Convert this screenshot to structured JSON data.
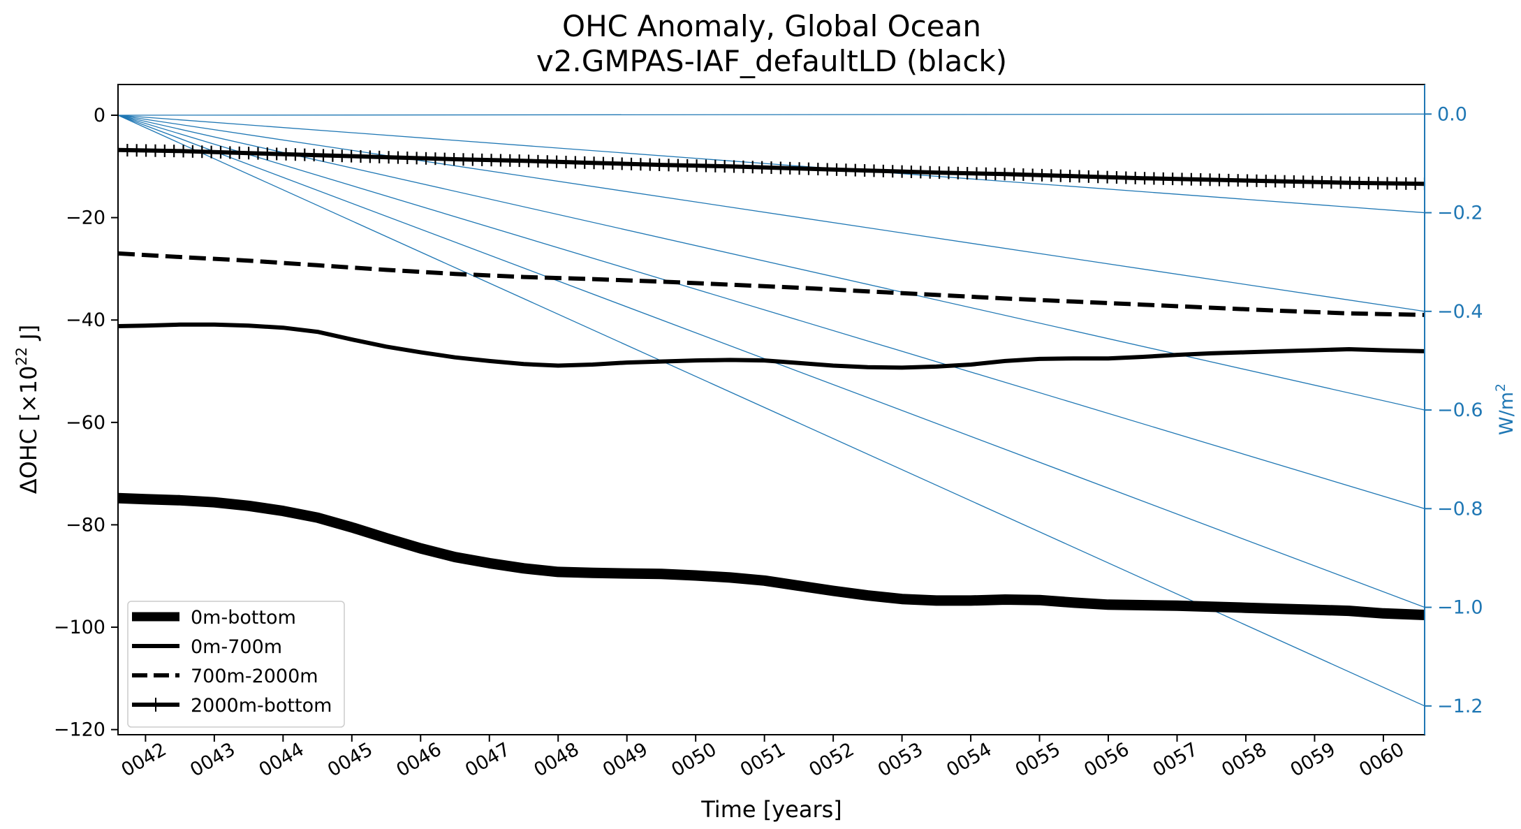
{
  "chart_data": {
    "type": "line",
    "title": [
      "OHC Anomaly, Global Ocean",
      "v2.GMPAS-IAF_defaultLD (black)"
    ],
    "xlabel": "Time [years]",
    "ylabel": "ΔOHC [×10²² J]",
    "ylabel_base": "ΔOHC [×10",
    "ylabel_exp": "22",
    "ylabel_tail": " J]",
    "y2label_base": "W/m",
    "y2label_exp": "2",
    "xlim": [
      41.6,
      60.6
    ],
    "ylim": [
      -121,
      6
    ],
    "y2lim": [
      -1.2583,
      0.0599
    ],
    "x_ticks": [
      42,
      43,
      44,
      45,
      46,
      47,
      48,
      49,
      50,
      51,
      52,
      53,
      54,
      55,
      56,
      57,
      58,
      59,
      60
    ],
    "x_tick_labels": [
      "0042",
      "0043",
      "0044",
      "0045",
      "0046",
      "0047",
      "0048",
      "0049",
      "0050",
      "0051",
      "0052",
      "0053",
      "0054",
      "0055",
      "0056",
      "0057",
      "0058",
      "0059",
      "0060"
    ],
    "y_ticks": [
      0,
      -20,
      -40,
      -60,
      -80,
      -100,
      -120
    ],
    "y_tick_labels": [
      "0",
      "−20",
      "−40",
      "−60",
      "−80",
      "−100",
      "−120"
    ],
    "y2_ticks": [
      0.0,
      -0.2,
      -0.4,
      -0.6,
      -0.8,
      -1.0,
      -1.2
    ],
    "y2_tick_labels": [
      "0.0",
      "−0.2",
      "−0.4",
      "−0.6",
      "−0.8",
      "−1.0",
      "−1.2"
    ],
    "reference_lines": {
      "color": "#1f77b4",
      "origin": [
        41.6,
        0
      ],
      "end_x": 60.6,
      "end_values_wm2": [
        0.0,
        -0.2,
        -0.4,
        -0.6,
        -0.8,
        -1.0,
        -1.2
      ]
    },
    "series": [
      {
        "name": "0m-bottom",
        "style": "solid-thick",
        "x": [
          41.6,
          42.0,
          42.5,
          43.0,
          43.5,
          44.0,
          44.5,
          45.0,
          45.5,
          46.0,
          46.5,
          47.0,
          47.5,
          48.0,
          48.5,
          49.0,
          49.5,
          50.0,
          50.5,
          51.0,
          51.5,
          52.0,
          52.5,
          53.0,
          53.5,
          54.0,
          54.5,
          55.0,
          55.5,
          56.0,
          56.5,
          57.0,
          57.5,
          58.0,
          58.5,
          59.0,
          59.5,
          60.0,
          60.6
        ],
        "values": [
          -74.8,
          -75.0,
          -75.2,
          -75.6,
          -76.3,
          -77.3,
          -78.6,
          -80.5,
          -82.6,
          -84.6,
          -86.3,
          -87.5,
          -88.5,
          -89.2,
          -89.4,
          -89.5,
          -89.6,
          -89.9,
          -90.3,
          -90.9,
          -91.9,
          -92.9,
          -93.8,
          -94.5,
          -94.8,
          -94.8,
          -94.6,
          -94.7,
          -95.2,
          -95.6,
          -95.7,
          -95.8,
          -96.0,
          -96.2,
          -96.4,
          -96.6,
          -96.8,
          -97.3,
          -97.6
        ]
      },
      {
        "name": "0m-700m",
        "style": "solid",
        "x": [
          41.6,
          42.0,
          42.5,
          43.0,
          43.5,
          44.0,
          44.5,
          45.0,
          45.5,
          46.0,
          46.5,
          47.0,
          47.5,
          48.0,
          48.5,
          49.0,
          49.5,
          50.0,
          50.5,
          51.0,
          51.5,
          52.0,
          52.5,
          53.0,
          53.5,
          54.0,
          54.5,
          55.0,
          55.5,
          56.0,
          56.5,
          57.0,
          57.5,
          58.0,
          58.5,
          59.0,
          59.5,
          60.0,
          60.6
        ],
        "values": [
          -41.2,
          -41.1,
          -40.9,
          -40.9,
          -41.1,
          -41.5,
          -42.3,
          -43.8,
          -45.2,
          -46.3,
          -47.3,
          -48.0,
          -48.6,
          -48.9,
          -48.7,
          -48.3,
          -48.1,
          -47.9,
          -47.8,
          -47.9,
          -48.4,
          -48.9,
          -49.2,
          -49.3,
          -49.1,
          -48.7,
          -48.0,
          -47.6,
          -47.5,
          -47.5,
          -47.2,
          -46.8,
          -46.5,
          -46.3,
          -46.1,
          -45.9,
          -45.7,
          -45.9,
          -46.1
        ]
      },
      {
        "name": "700m-2000m",
        "style": "dashed",
        "x": [
          41.6,
          42.5,
          43.5,
          44.5,
          45.5,
          46.5,
          47.5,
          48.5,
          49.5,
          50.5,
          51.5,
          52.5,
          53.5,
          54.5,
          55.5,
          56.5,
          57.5,
          58.5,
          59.5,
          60.6
        ],
        "values": [
          -27.0,
          -27.7,
          -28.4,
          -29.3,
          -30.2,
          -31.0,
          -31.6,
          -32.0,
          -32.5,
          -33.1,
          -33.7,
          -34.4,
          -35.1,
          -35.8,
          -36.4,
          -37.0,
          -37.6,
          -38.2,
          -38.7,
          -39.0
        ]
      },
      {
        "name": "2000m-bottom",
        "style": "solid-plus",
        "x": [
          41.6,
          42.5,
          43.5,
          44.5,
          45.5,
          46.5,
          47.5,
          48.5,
          49.5,
          50.5,
          51.5,
          52.5,
          53.5,
          54.5,
          55.5,
          56.5,
          57.5,
          58.5,
          59.5,
          60.6
        ],
        "values": [
          -6.8,
          -7.0,
          -7.4,
          -7.8,
          -8.2,
          -8.6,
          -8.9,
          -9.3,
          -9.7,
          -10.0,
          -10.4,
          -10.8,
          -11.2,
          -11.5,
          -11.9,
          -12.3,
          -12.6,
          -12.9,
          -13.2,
          -13.4
        ]
      }
    ],
    "legend_position": "lower-left"
  }
}
